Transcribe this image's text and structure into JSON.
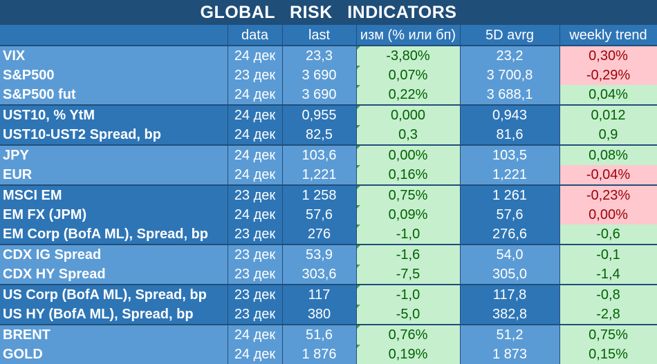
{
  "title": "GLOBAL   RISK   INDICATORS",
  "headers": [
    "",
    "data",
    "last",
    "изм (% или бп)",
    "5D avrg",
    "weekly trend"
  ],
  "rows": [
    {
      "group": 1,
      "name": "VIX",
      "date": "24 дек",
      "last": "23,3",
      "change": "-3,80%",
      "avg": "23,2",
      "trend": "0,30%",
      "change_style": "green",
      "avg_style": "g",
      "trend_style": "red"
    },
    {
      "group": 1,
      "name": "S&P500",
      "date": "23 дек",
      "last": "3 690",
      "change": "0,07%",
      "avg": "3 700,8",
      "trend": "-0,29%",
      "change_style": "green",
      "avg_style": "g",
      "trend_style": "red"
    },
    {
      "group": 1,
      "name": "S&P500 fut",
      "date": "24 дек",
      "last": "3 690",
      "change": "0,22%",
      "avg": "3 688,1",
      "trend": "0,04%",
      "change_style": "green",
      "avg_style": "g",
      "trend_style": "green",
      "last_in_group": true
    },
    {
      "group": 2,
      "name": "UST10, % YtM",
      "date": "24 дек",
      "last": "0,955",
      "change": "0,000",
      "avg": "0,943",
      "trend": "0,012",
      "change_style": "green",
      "avg_style": "g",
      "trend_style": "green"
    },
    {
      "group": 2,
      "name": "UST10-UST2 Spread, bp",
      "date": "24 дек",
      "last": "82,5",
      "change": "0,3",
      "avg": "81,6",
      "trend": "0,9",
      "change_style": "green",
      "avg_style": "g",
      "trend_style": "green",
      "last_in_group": true
    },
    {
      "group": 1,
      "name": "JPY",
      "date": "24 дек",
      "last": "103,6",
      "change": "0,00%",
      "avg": "103,5",
      "trend": "0,08%",
      "change_style": "green",
      "avg_style": "g",
      "trend_style": "green"
    },
    {
      "group": 1,
      "name": "EUR",
      "date": "24 дек",
      "last": "1,221",
      "change": "0,16%",
      "avg": "1,221",
      "trend": "-0,04%",
      "change_style": "green",
      "avg_style": "g",
      "trend_style": "red",
      "last_in_group": true
    },
    {
      "group": 2,
      "name": "MSCI EM",
      "date": "23 дек",
      "last": "1 258",
      "change": "0,75%",
      "avg": "1 261",
      "trend": "-0,23%",
      "change_style": "green",
      "avg_style": "g",
      "trend_style": "red"
    },
    {
      "group": 2,
      "name": "EM FX (JPM)",
      "date": "24 дек",
      "last": "57,6",
      "change": "0,09%",
      "avg": "57,6",
      "trend": "0,00%",
      "change_style": "green",
      "avg_style": "g",
      "trend_style": "red"
    },
    {
      "group": 2,
      "name": "EM Corp (BofA ML), Spread, bp",
      "date": "23 дек",
      "last": "276",
      "change": "-1,0",
      "avg": "276,6",
      "trend": "-0,6",
      "change_style": "green",
      "avg_style": "g",
      "trend_style": "green",
      "last_in_group": true
    },
    {
      "group": 1,
      "name": "CDX IG Spread",
      "date": "23 дек",
      "last": "53,9",
      "change": "-1,6",
      "avg": "54,0",
      "trend": "-0,1",
      "change_style": "green",
      "avg_style": "g",
      "trend_style": "green"
    },
    {
      "group": 1,
      "name": "CDX HY Spread",
      "date": "23 дек",
      "last": "303,6",
      "change": "-7,5",
      "avg": "305,0",
      "trend": "-1,4",
      "change_style": "green",
      "avg_style": "g",
      "trend_style": "green",
      "last_in_group": true
    },
    {
      "group": 2,
      "name": "US Corp (BofA ML), Spread, bp",
      "date": "23 дек",
      "last": "117",
      "change": "-1,0",
      "avg": "117,8",
      "trend": "-0,8",
      "change_style": "green",
      "avg_style": "g",
      "trend_style": "green"
    },
    {
      "group": 2,
      "name": "US HY (BofA ML), Spread, bp",
      "date": "23 дек",
      "last": "380",
      "change": "-5,0",
      "avg": "382,8",
      "trend": "-2,8",
      "change_style": "green",
      "avg_style": "g",
      "trend_style": "green",
      "last_in_group": true
    },
    {
      "group": 1,
      "name": "BRENT",
      "date": "24 дек",
      "last": "51,6",
      "change": "0,76%",
      "avg": "51,2",
      "trend": "0,75%",
      "change_style": "green",
      "avg_style": "g",
      "trend_style": "green"
    },
    {
      "group": 1,
      "name": "GOLD",
      "date": "24 дек",
      "last": "1 876",
      "change": "0,19%",
      "avg": "1 873",
      "trend": "0,15%",
      "change_style": "green",
      "avg_style": "g",
      "trend_style": "green"
    }
  ],
  "colors": {
    "title_bg": "#1f4e79",
    "header_bg": "#2e75b6",
    "light_blue": "#5b9bd5",
    "mid_blue": "#2e75b6",
    "pos_bg": "#c6efce",
    "pos_fg": "#006100",
    "neg_bg": "#ffc7ce",
    "neg_fg": "#9c0006"
  }
}
